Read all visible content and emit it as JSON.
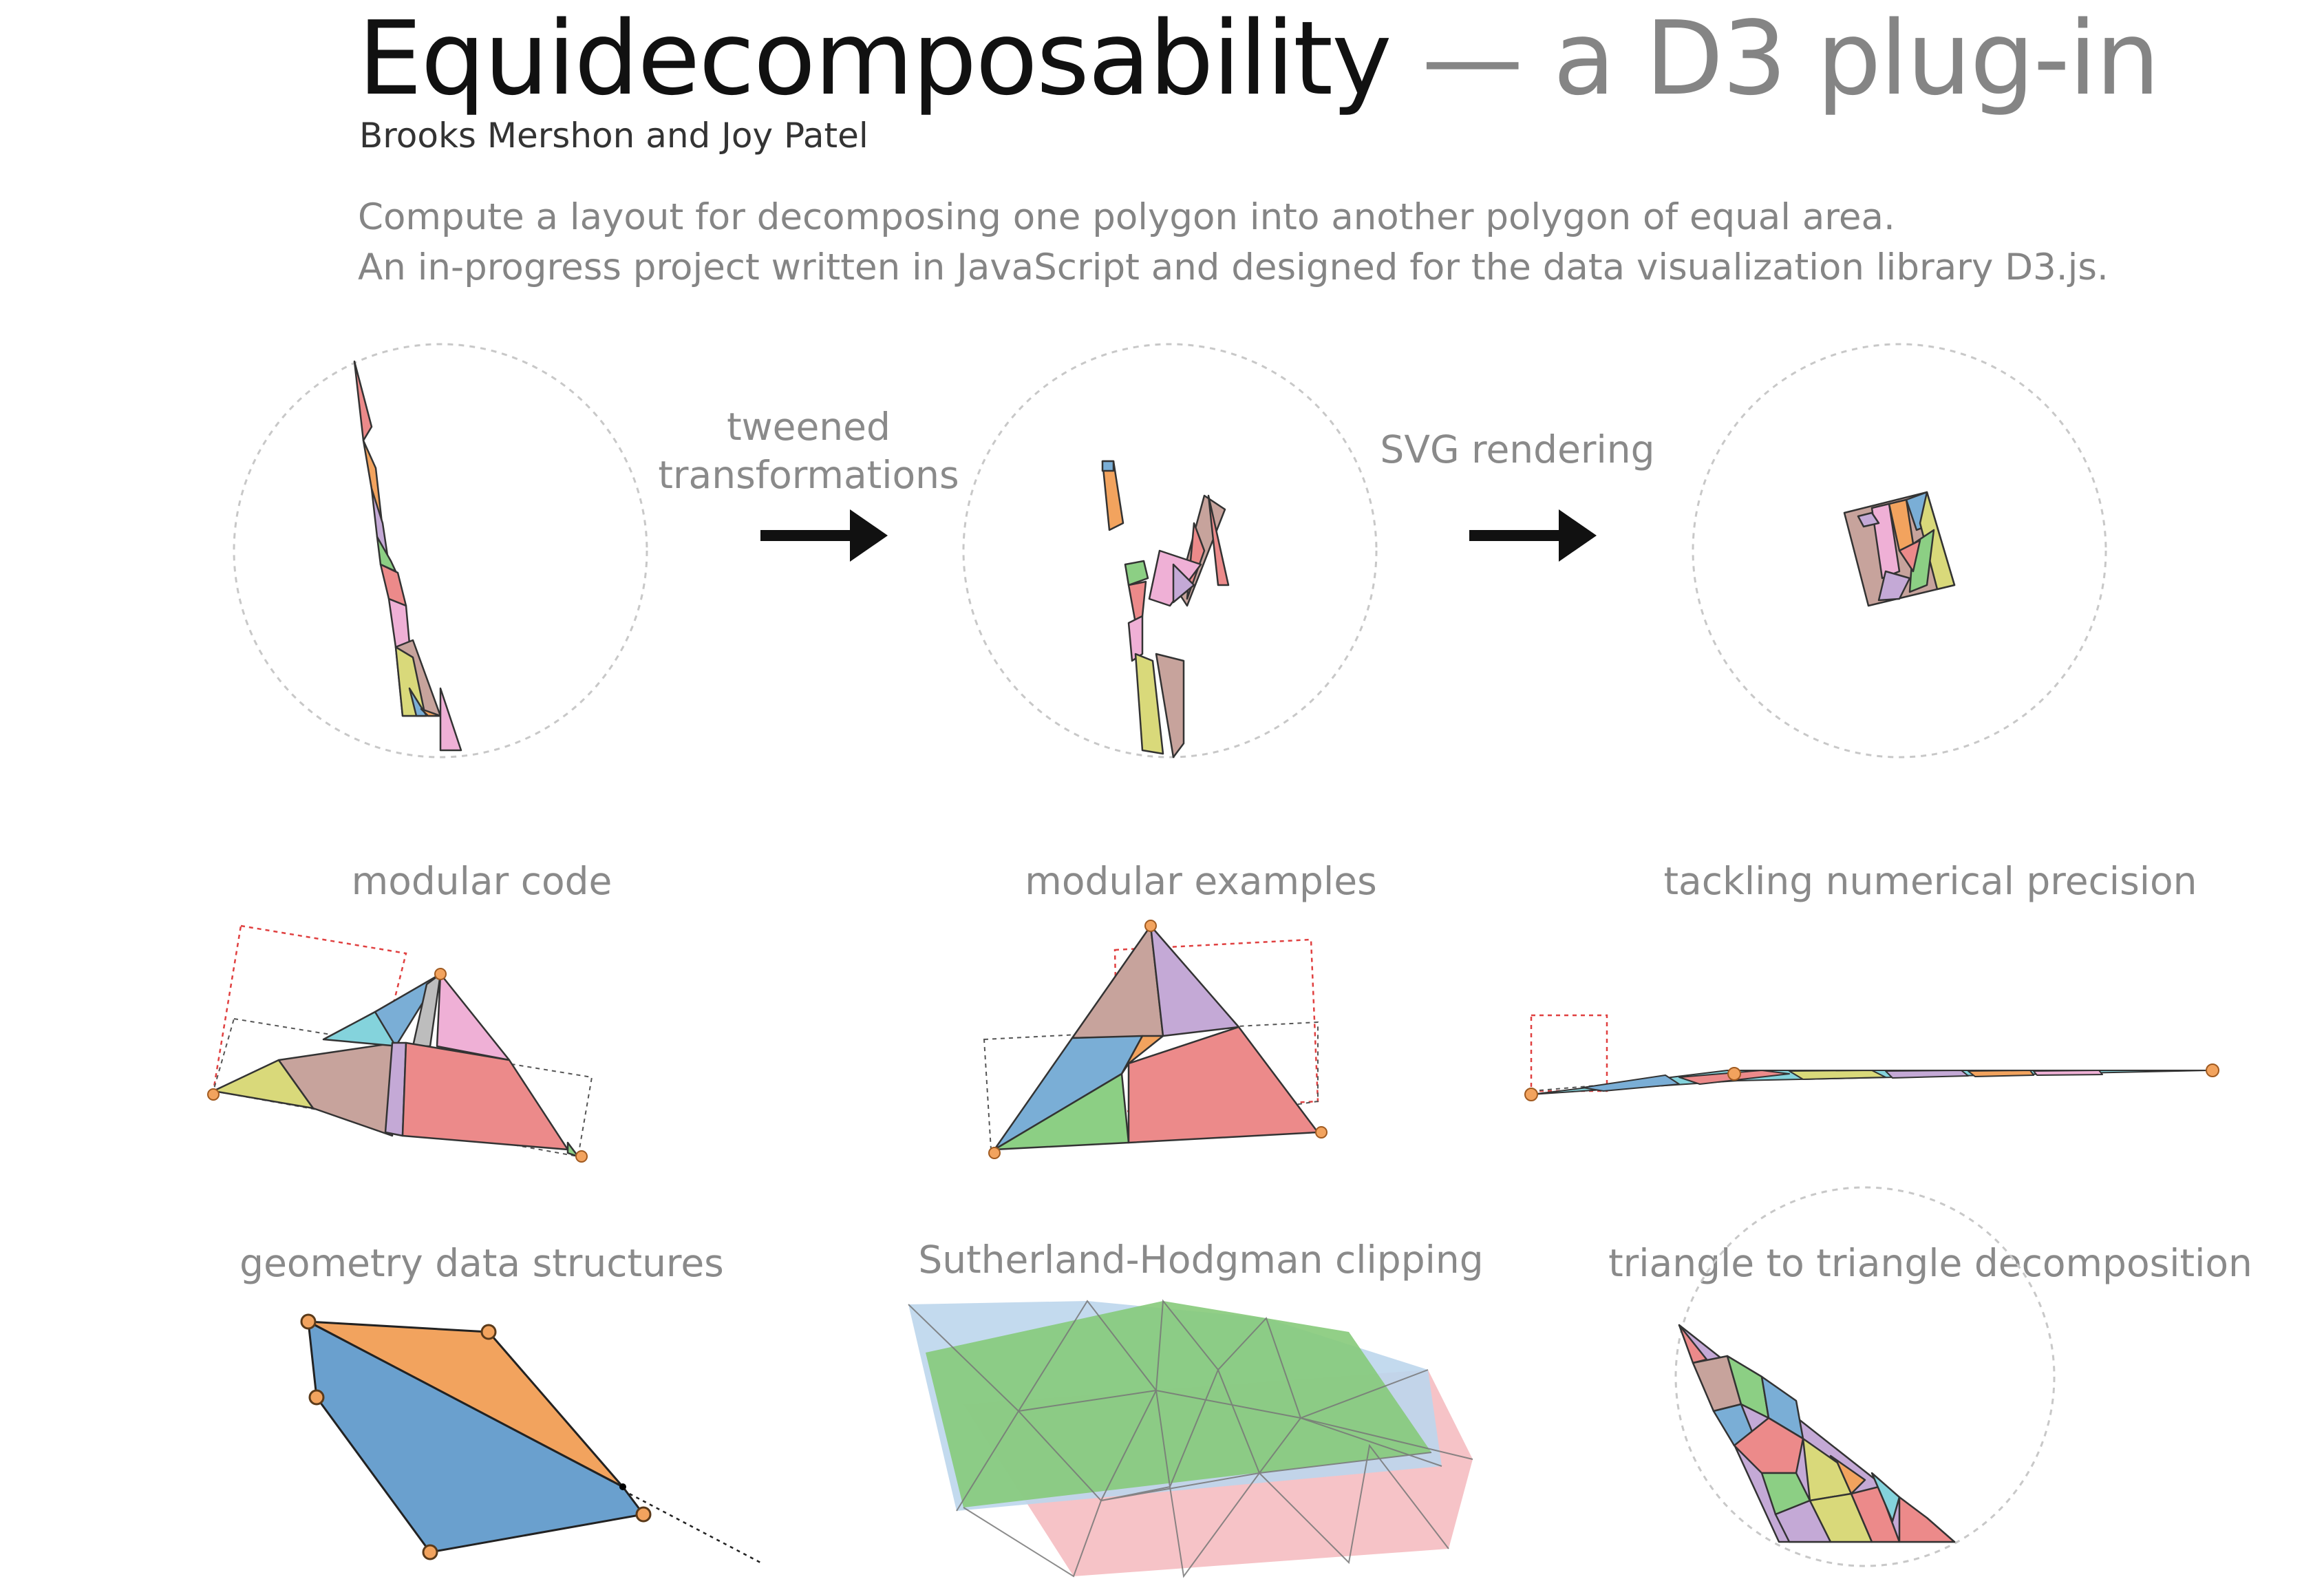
{
  "header": {
    "title_main": "Equidecomposability",
    "title_sub": " — a D3 plug-in",
    "authors": "Brooks Mershon and Joy Patel",
    "description_line1": "Compute a layout for decomposing one polygon into another polygon of equal area.",
    "description_line2": "An in-progress project written in JavaScript and designed for the data visualization library D3.js."
  },
  "pipeline": {
    "arrow1_label_line1": "tweened",
    "arrow1_label_line2": "transformations",
    "arrow2_label": "SVG rendering"
  },
  "features": {
    "modular_code": "modular code",
    "modular_examples": "modular examples",
    "numerical_precision": "tackling numerical precision",
    "data_structures": "geometry data structures",
    "clipping": "Sutherland-Hodgman clipping",
    "triangle_decomposition": "triangle to triangle decomposition"
  },
  "colors": {
    "blue": "#7aaed6",
    "orange": "#f2a35e",
    "green": "#8ccf84",
    "red": "#ec8a8a",
    "purple": "#c4a9d6",
    "brown": "#c7a39c",
    "pink": "#efb0d6",
    "gray": "#bdbdbd",
    "olive": "#d9d97a",
    "cyan": "#84d3dc",
    "arrow": "#111111",
    "guide": "#c8c8c8",
    "dashed_red": "#e04040"
  }
}
